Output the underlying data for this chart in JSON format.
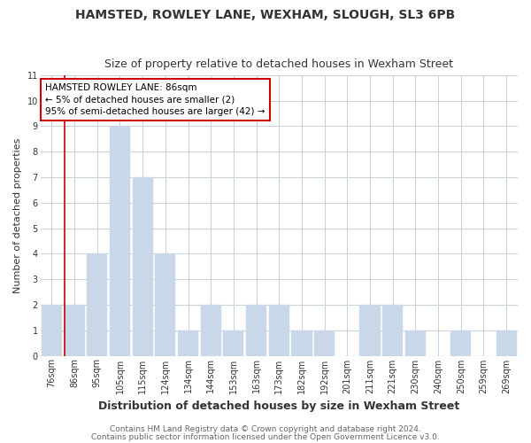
{
  "title": "HAMSTED, ROWLEY LANE, WEXHAM, SLOUGH, SL3 6PB",
  "subtitle": "Size of property relative to detached houses in Wexham Street",
  "xlabel": "Distribution of detached houses by size in Wexham Street",
  "ylabel": "Number of detached properties",
  "bar_labels": [
    "76sqm",
    "86sqm",
    "95sqm",
    "105sqm",
    "115sqm",
    "124sqm",
    "134sqm",
    "144sqm",
    "153sqm",
    "163sqm",
    "173sqm",
    "182sqm",
    "192sqm",
    "201sqm",
    "211sqm",
    "221sqm",
    "230sqm",
    "240sqm",
    "250sqm",
    "259sqm",
    "269sqm"
  ],
  "bar_heights": [
    2,
    2,
    4,
    9,
    7,
    4,
    1,
    2,
    1,
    2,
    2,
    1,
    1,
    0,
    2,
    2,
    1,
    0,
    1,
    0,
    1
  ],
  "bar_color": "#c8d8e8",
  "bar_edgecolor": "#c8d8e8",
  "highlight_x_label": "86sqm",
  "highlight_line_color": "#cc0000",
  "annotation_line1": "HAMSTED ROWLEY LANE: 86sqm",
  "annotation_line2": "← 5% of detached houses are smaller (2)",
  "annotation_line3": "95% of semi-detached houses are larger (42) →",
  "annotation_box_edgecolor": "#cc0000",
  "ylim": [
    0,
    11
  ],
  "yticks": [
    0,
    1,
    2,
    3,
    4,
    5,
    6,
    7,
    8,
    9,
    10,
    11
  ],
  "footer_line1": "Contains HM Land Registry data © Crown copyright and database right 2024.",
  "footer_line2": "Contains public sector information licensed under the Open Government Licence v3.0.",
  "background_color": "#ffffff",
  "grid_color": "#c8d0dc",
  "title_fontsize": 10,
  "subtitle_fontsize": 9,
  "xlabel_fontsize": 9,
  "ylabel_fontsize": 8,
  "tick_fontsize": 7,
  "annotation_fontsize": 7.5,
  "footer_fontsize": 6.5
}
